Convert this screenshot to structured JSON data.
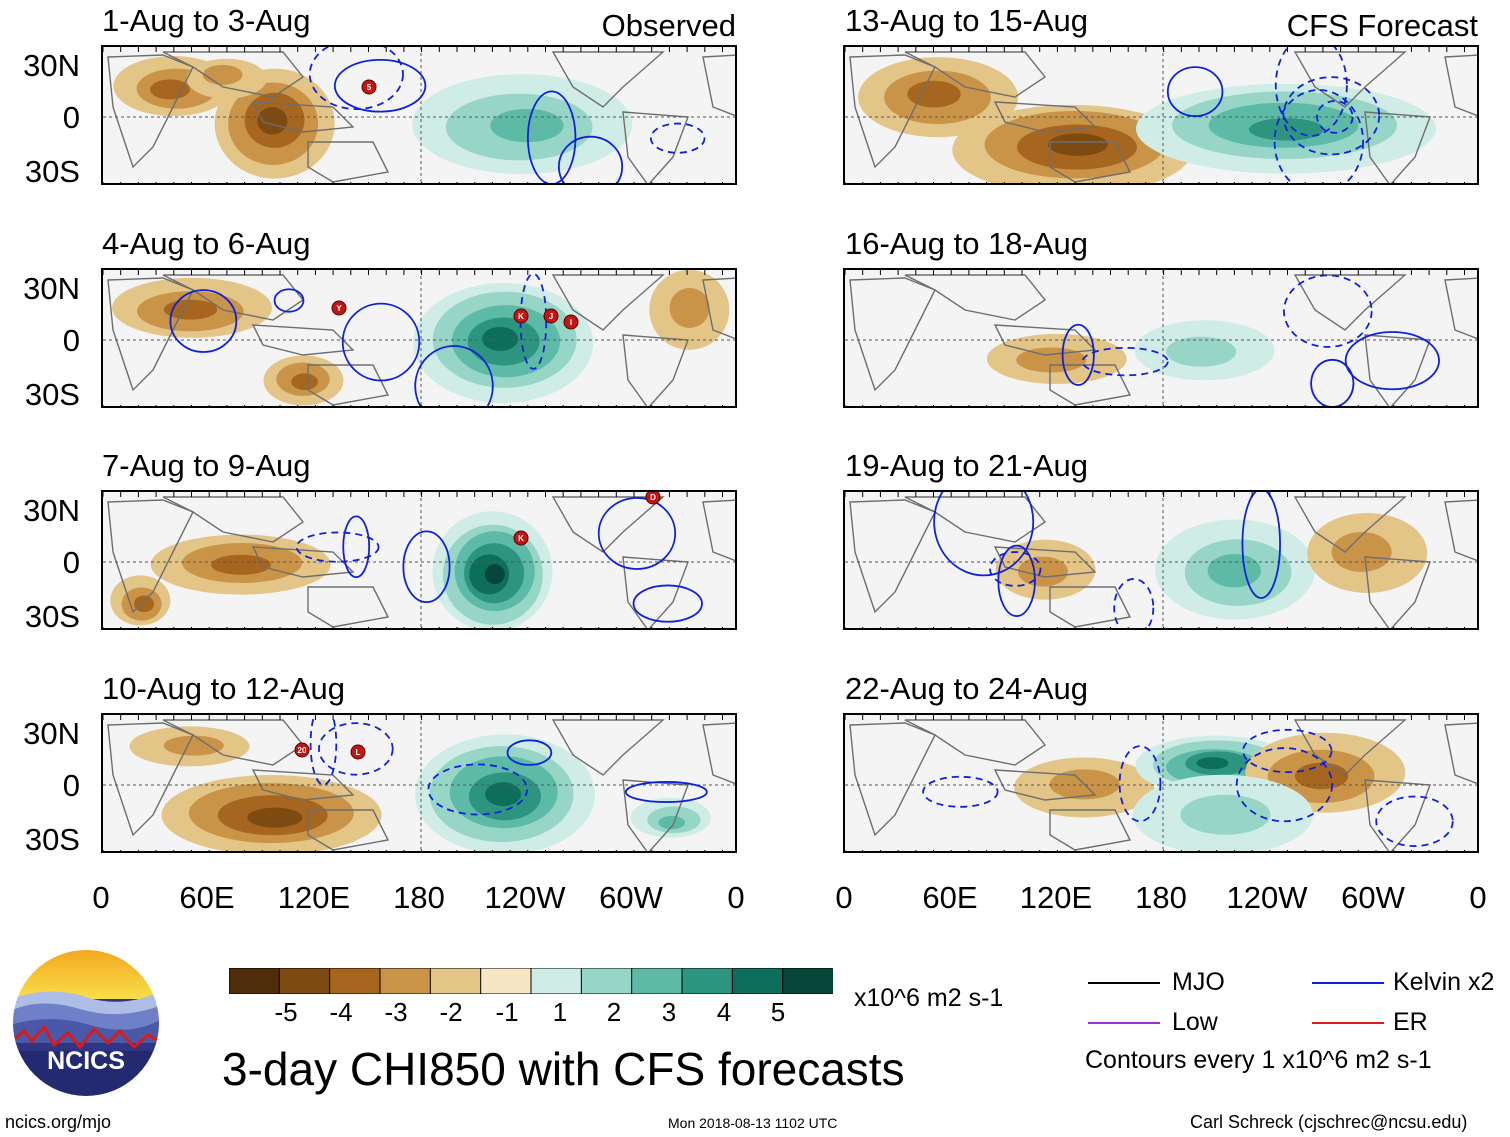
{
  "left_tag": "Observed",
  "right_tag": "CFS Forecast",
  "observed_panels": [
    {
      "title": "1-Aug to 3-Aug",
      "storms": [
        "5"
      ]
    },
    {
      "title": "4-Aug to 6-Aug",
      "storms": [
        "Y",
        "K",
        "J",
        "I"
      ]
    },
    {
      "title": "7-Aug to 9-Aug",
      "storms": [
        "K",
        "D"
      ]
    },
    {
      "title": "10-Aug to 12-Aug",
      "storms": [
        "20",
        "L"
      ]
    }
  ],
  "forecast_panels": [
    {
      "title": "13-Aug to 15-Aug"
    },
    {
      "title": "16-Aug to 18-Aug"
    },
    {
      "title": "19-Aug to 21-Aug"
    },
    {
      "title": "22-Aug to 24-Aug"
    }
  ],
  "lat_labels": [
    "30N",
    "0",
    "30S"
  ],
  "lon_labels": [
    "0",
    "60E",
    "120E",
    "180",
    "120W",
    "60W",
    "0"
  ],
  "colorbar": {
    "ticks": [
      "-5",
      "-4",
      "-3",
      "-2",
      "-1",
      "1",
      "2",
      "3",
      "4",
      "5"
    ],
    "colors": [
      "#4f2d0a",
      "#7d4a12",
      "#a6661f",
      "#c99447",
      "#e3c587",
      "#f6e6c4",
      "#f5f5f5",
      "#cfece6",
      "#97d6c6",
      "#5dbaa6",
      "#2d9480",
      "#0e6e5c",
      "#07463a"
    ],
    "units": "x10^6 m2 s-1"
  },
  "legend": [
    {
      "label": "MJO",
      "color": "#000000"
    },
    {
      "label": "Kelvin x2",
      "color": "#1022d8"
    },
    {
      "label": "Low",
      "color": "#9a2fd6"
    },
    {
      "label": "ER",
      "color": "#d81a1a"
    }
  ],
  "contour_note": "Contours every 1 x10^6 m2 s-1",
  "logo_text": "NCICS",
  "main_title": "3-day CHI850 with CFS forecasts",
  "footer_left": "ncics.org/mjo",
  "footer_center": "Mon 2018-08-13 1102 UTC",
  "footer_right": "Carl Schreck (cjschrec@ncsu.edu)"
}
